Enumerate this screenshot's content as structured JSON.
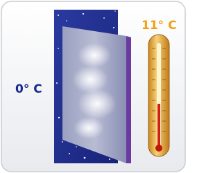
{
  "labels": {
    "outside_temperature": "0° C",
    "inside_temperature": "11° C"
  }
}
